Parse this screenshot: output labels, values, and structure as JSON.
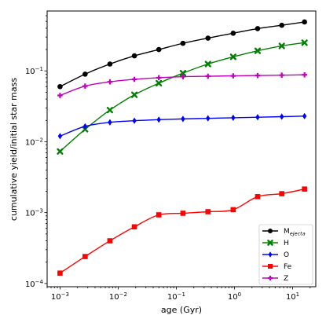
{
  "chart_data": {
    "type": "line",
    "xlabel": "age (Gyr)",
    "ylabel": "cumulative yield/initial star mass",
    "xscale": "log",
    "yscale": "log",
    "xlim": [
      0.0006,
      25
    ],
    "ylim": [
      9e-05,
      0.7
    ],
    "x_ticks": [
      {
        "value": 0.001,
        "base": "10",
        "exp": "−3"
      },
      {
        "value": 0.01,
        "base": "10",
        "exp": "−2"
      },
      {
        "value": 0.1,
        "base": "10",
        "exp": "−1"
      },
      {
        "value": 1,
        "base": "10",
        "exp": "0"
      },
      {
        "value": 10,
        "base": "10",
        "exp": "1"
      }
    ],
    "y_ticks": [
      {
        "value": 0.0001,
        "base": "10",
        "exp": "−4"
      },
      {
        "value": 0.001,
        "base": "10",
        "exp": "−3"
      },
      {
        "value": 0.01,
        "base": "10",
        "exp": "−2"
      },
      {
        "value": 0.1,
        "base": "10",
        "exp": "−1"
      }
    ],
    "x": [
      0.001,
      0.0027,
      0.0072,
      0.019,
      0.05,
      0.13,
      0.35,
      0.95,
      2.5,
      6.5,
      16
    ],
    "legend_position": "lower-right",
    "series": [
      {
        "key": "mej",
        "name": "M",
        "name_sub": "ejecta",
        "color": "#000000",
        "marker": "circle",
        "values": [
          0.06,
          0.09,
          0.125,
          0.163,
          0.2,
          0.245,
          0.29,
          0.34,
          0.395,
          0.44,
          0.49
        ]
      },
      {
        "key": "h",
        "name": "H",
        "color": "#008000",
        "marker": "x",
        "values": [
          0.0073,
          0.015,
          0.028,
          0.046,
          0.067,
          0.093,
          0.125,
          0.158,
          0.192,
          0.225,
          0.25
        ]
      },
      {
        "key": "o",
        "name": "O",
        "color": "#0000ff",
        "marker": "diamond",
        "values": [
          0.012,
          0.0165,
          0.0188,
          0.0198,
          0.0205,
          0.021,
          0.0214,
          0.0218,
          0.0222,
          0.0226,
          0.023
        ]
      },
      {
        "key": "fe",
        "name": "Fe",
        "color": "#ff0000",
        "marker": "square",
        "values": [
          0.00014,
          0.00024,
          0.0004,
          0.00063,
          0.00093,
          0.00098,
          0.00103,
          0.0011,
          0.00168,
          0.00185,
          0.00215
        ]
      },
      {
        "key": "z",
        "name": "Z",
        "color": "#bf00bf",
        "marker": "plus",
        "values": [
          0.045,
          0.061,
          0.07,
          0.076,
          0.08,
          0.083,
          0.084,
          0.085,
          0.086,
          0.087,
          0.088
        ]
      }
    ]
  }
}
